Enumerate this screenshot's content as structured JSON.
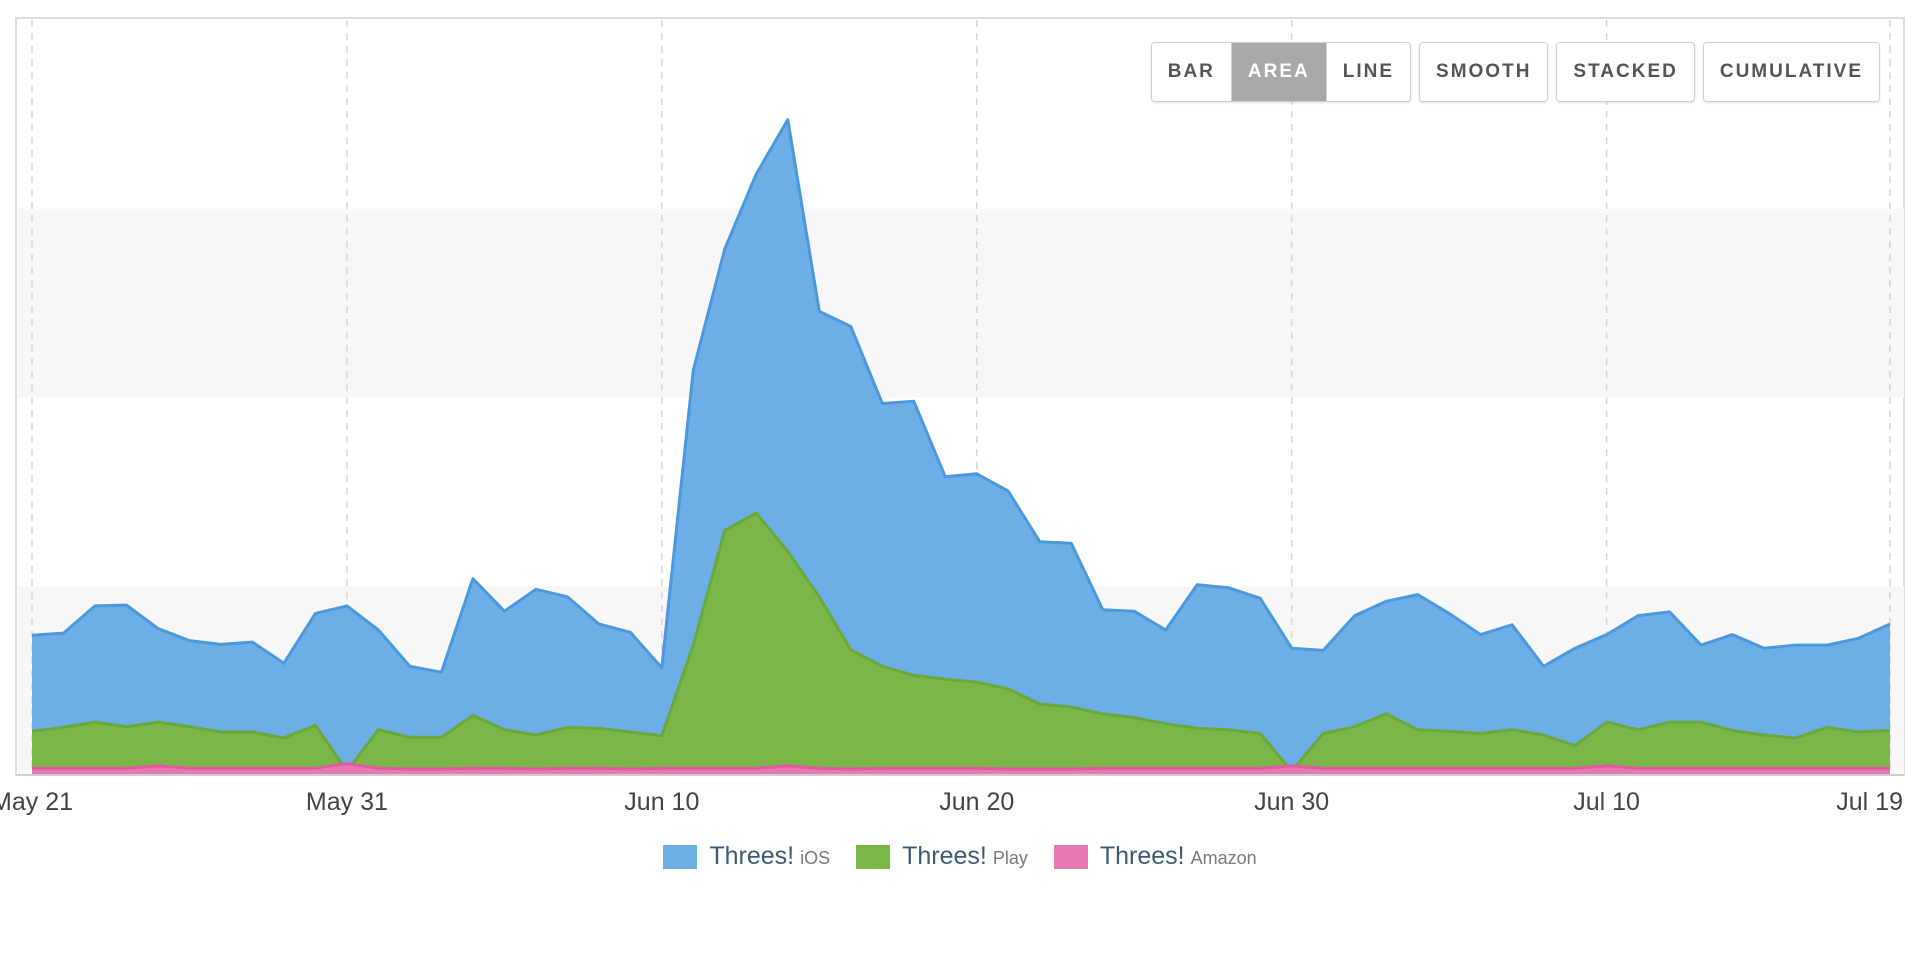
{
  "toolbar": {
    "groups": [
      [
        {
          "label": "BAR",
          "active": false
        },
        {
          "label": "AREA",
          "active": true
        },
        {
          "label": "LINE",
          "active": false
        }
      ],
      [
        {
          "label": "SMOOTH",
          "active": false
        }
      ],
      [
        {
          "label": "STACKED",
          "active": false
        }
      ],
      [
        {
          "label": "CUMULATIVE",
          "active": false
        }
      ]
    ]
  },
  "legend": [
    {
      "name": "Threes!",
      "platform": "iOS",
      "color": "#6daee6"
    },
    {
      "name": "Threes!",
      "platform": "Play",
      "color": "#7ab648"
    },
    {
      "name": "Threes!",
      "platform": "Amazon",
      "color": "#e779b0"
    }
  ],
  "colors": {
    "ios_fill": "#6daee6",
    "ios_line": "#4a98de",
    "play_fill": "#7ab648",
    "play_line": "#6aa83c",
    "amazon_fill": "#e779b0",
    "amazon_line": "#e05aa0",
    "grid_band": "#f7f7f7",
    "grid_line": "#d6d6d6"
  },
  "chart_data": {
    "type": "area",
    "x_start": "May 21",
    "x_end": "Jul 19",
    "x_ticks": [
      "May 21",
      "May 31",
      "Jun 10",
      "Jun 20",
      "Jun 30",
      "Jul 10",
      "Jul 19"
    ],
    "y_range": [
      0,
      100
    ],
    "grid": true,
    "horizontal_bands": true,
    "legend_position": "bottom-center",
    "series": [
      {
        "name": "Threes! iOS",
        "values": [
          18.5,
          18.8,
          22.4,
          22.5,
          19.4,
          17.8,
          17.3,
          17.6,
          14.8,
          21.4,
          22.4,
          19.2,
          14.4,
          13.6,
          26.0,
          21.7,
          24.6,
          23.6,
          20.0,
          18.9,
          14.2,
          53.6,
          69.7,
          79.6,
          86.8,
          61.4,
          59.4,
          49.2,
          49.5,
          39.5,
          39.9,
          37.6,
          30.9,
          30.7,
          21.9,
          21.7,
          19.2,
          25.2,
          24.8,
          23.4,
          16.8,
          16.5,
          21.1,
          23.0,
          23.9,
          21.4,
          18.6,
          19.9,
          14.4,
          16.8,
          18.6,
          21.1,
          21.6,
          17.2,
          18.6,
          16.8,
          17.2,
          17.2,
          18.1,
          20.0
        ]
      },
      {
        "name": "Threes! Play",
        "values": [
          5.8,
          6.3,
          7.0,
          6.4,
          7.0,
          6.4,
          5.7,
          5.7,
          4.9,
          6.6,
          0.5,
          6.0,
          5.0,
          5.0,
          7.9,
          6.0,
          5.3,
          6.3,
          6.2,
          5.7,
          5.2,
          17.2,
          32.4,
          34.7,
          29.6,
          23.6,
          16.6,
          14.4,
          13.2,
          12.7,
          12.3,
          11.4,
          9.4,
          9.0,
          8.1,
          7.6,
          6.8,
          6.2,
          6.0,
          5.5,
          0.5,
          5.5,
          6.4,
          8.1,
          6.0,
          5.8,
          5.5,
          6.0,
          5.3,
          3.9,
          7.0,
          6.0,
          7.0,
          7.0,
          5.9,
          5.3,
          4.9,
          6.3,
          5.7,
          5.9
        ]
      },
      {
        "name": "Threes! Amazon",
        "values": [
          0.9,
          0.9,
          0.9,
          0.9,
          1.2,
          0.9,
          0.9,
          0.9,
          0.9,
          0.9,
          1.5,
          0.9,
          0.8,
          0.8,
          0.9,
          0.9,
          0.8,
          0.9,
          0.9,
          0.8,
          0.9,
          0.9,
          0.9,
          0.9,
          1.2,
          0.9,
          0.8,
          0.9,
          0.9,
          0.9,
          0.9,
          0.8,
          0.8,
          0.8,
          0.9,
          0.9,
          0.9,
          0.9,
          0.9,
          0.9,
          1.2,
          0.9,
          0.9,
          0.9,
          0.9,
          0.9,
          0.9,
          0.9,
          0.9,
          0.9,
          1.2,
          0.9,
          0.9,
          0.9,
          0.9,
          0.9,
          0.9,
          0.9,
          0.9,
          0.9
        ]
      }
    ]
  }
}
